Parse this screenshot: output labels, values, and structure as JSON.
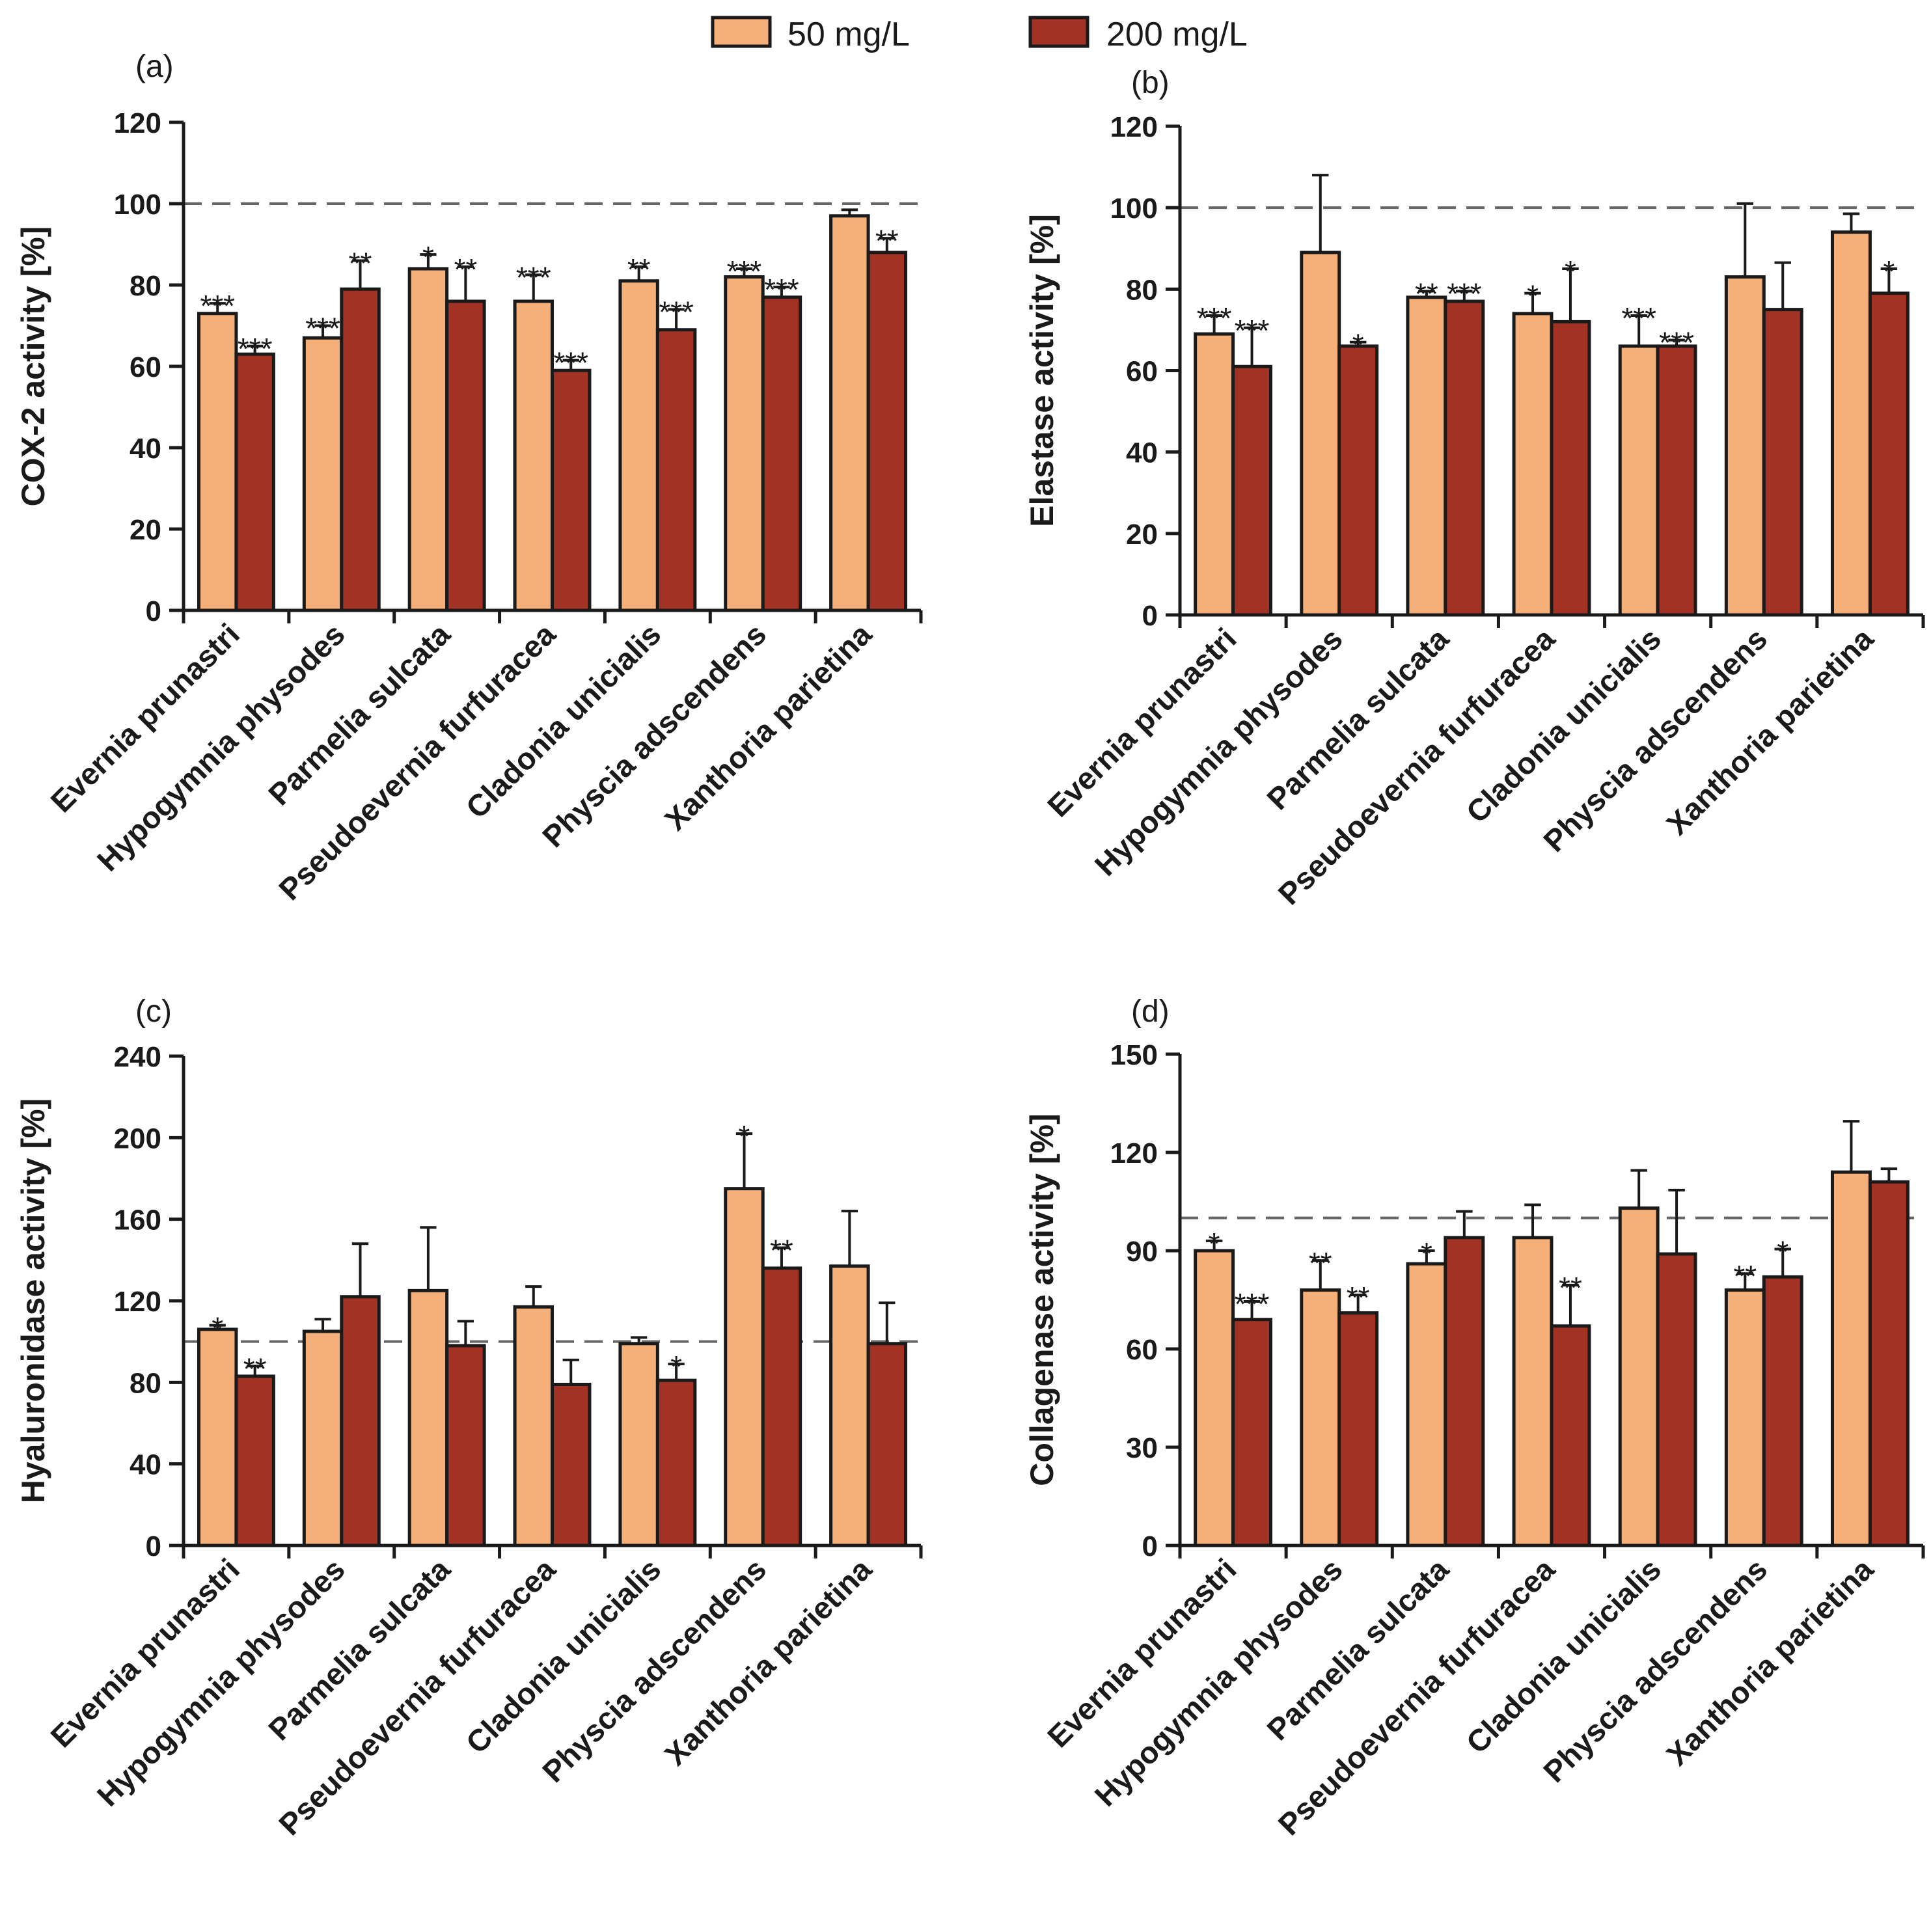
{
  "legend": [
    {
      "label": "50 mg/L",
      "color": "#f5b07a"
    },
    {
      "label": "200 mg/L",
      "color": "#a23224"
    }
  ],
  "colors": {
    "series_50": "#f5b07a",
    "series_200": "#a23224",
    "axis": "#1a1a1a",
    "reference": "#666666"
  },
  "chart_data": [
    {
      "panel": "(a)",
      "type": "bar",
      "ylabel": "COX-2 activity [%]",
      "ylim": [
        0,
        120
      ],
      "yticks": [
        0,
        20,
        40,
        60,
        80,
        100,
        120
      ],
      "reference_line": 100,
      "categories": [
        "Evernia prunastri",
        "Hypogymnia physodes",
        "Parmelia sulcata",
        "Pseudoevernia furfuracea",
        "Cladonia unicialis",
        "Physcia adscendens",
        "Xanthoria parietina"
      ],
      "series": [
        {
          "name": "50 mg/L",
          "values": [
            73,
            67,
            84,
            76,
            81,
            82,
            97
          ],
          "errors": [
            2.5,
            3,
            3.5,
            6.5,
            3.5,
            2,
            1.5
          ],
          "sig": [
            "***",
            "***",
            "*",
            "***",
            "**",
            "***",
            ""
          ]
        },
        {
          "name": "200 mg/L",
          "values": [
            63,
            79,
            76,
            59,
            69,
            77,
            88
          ],
          "errors": [
            2,
            7,
            8.5,
            2.5,
            5,
            2.5,
            3.5
          ],
          "sig": [
            "***",
            "**",
            "**",
            "***",
            "***",
            "***",
            "**"
          ]
        }
      ]
    },
    {
      "panel": "(b)",
      "type": "bar",
      "ylabel": "Elastase activity [%]",
      "ylim": [
        0,
        120
      ],
      "yticks": [
        0,
        20,
        40,
        60,
        80,
        100,
        120
      ],
      "reference_line": 100,
      "categories": [
        "Evernia prunastri",
        "Hypogymnia physodes",
        "Parmelia sulcata",
        "Pseudoevernia furfuracea",
        "Cladonia unicialis",
        "Physcia adscendens",
        "Xanthoria parietina"
      ],
      "series": [
        {
          "name": "50 mg/L",
          "values": [
            69,
            89,
            78,
            74,
            66,
            83,
            94
          ],
          "errors": [
            4.5,
            19,
            1.5,
            5,
            7.5,
            18,
            4.5
          ],
          "sig": [
            "***",
            "",
            "**",
            "*",
            "***",
            "",
            ""
          ]
        },
        {
          "name": "200 mg/L",
          "values": [
            61,
            66,
            77,
            72,
            66,
            75,
            79
          ],
          "errors": [
            9.5,
            1,
            2.5,
            13,
            1.5,
            11.5,
            6
          ],
          "sig": [
            "***",
            "*",
            "***",
            "*",
            "***",
            "",
            "*"
          ]
        }
      ]
    },
    {
      "panel": "(c)",
      "type": "bar",
      "ylabel": "Hyaluronidase activity [%]",
      "ylim": [
        0,
        240
      ],
      "yticks": [
        0,
        40,
        80,
        120,
        160,
        200,
        240
      ],
      "reference_line": 100,
      "categories": [
        "Evernia prunastri",
        "Hypogymnia physodes",
        "Parmelia sulcata",
        "Pseudoevernia furfuracea",
        "Cladonia unicialis",
        "Physcia adscendens",
        "Xanthoria parietina"
      ],
      "series": [
        {
          "name": "50 mg/L",
          "values": [
            106,
            105,
            125,
            117,
            99,
            175,
            137
          ],
          "errors": [
            2,
            6,
            31,
            10,
            3,
            27,
            27
          ],
          "sig": [
            "*",
            "",
            "",
            "",
            "",
            "*",
            ""
          ]
        },
        {
          "name": "200 mg/L",
          "values": [
            83,
            122,
            98,
            79,
            81,
            136,
            99
          ],
          "errors": [
            5,
            26,
            12,
            12,
            8,
            10,
            20
          ],
          "sig": [
            "**",
            "",
            "",
            "",
            "*",
            "**",
            ""
          ]
        }
      ]
    },
    {
      "panel": "(d)",
      "type": "bar",
      "ylabel": "Collagenase activity [%]",
      "ylim": [
        0,
        150
      ],
      "yticks": [
        0,
        30,
        60,
        90,
        120,
        150
      ],
      "reference_line": 100,
      "categories": [
        "Evernia prunastri",
        "Hypogymnia physodes",
        "Parmelia sulcata",
        "Pseudoevernia furfuracea",
        "Cladonia unicialis",
        "Physcia adscendens",
        "Xanthoria parietina"
      ],
      "series": [
        {
          "name": "50 mg/L",
          "values": [
            90,
            78,
            86,
            94,
            103,
            78,
            114
          ],
          "errors": [
            3,
            9,
            4,
            10,
            11.5,
            5,
            15.5
          ],
          "sig": [
            "*",
            "**",
            "*",
            "",
            "",
            "**",
            ""
          ]
        },
        {
          "name": "200 mg/L",
          "values": [
            69,
            71,
            94,
            67,
            89,
            82,
            111
          ],
          "errors": [
            5.5,
            5.5,
            8,
            12.5,
            19.5,
            8.5,
            4
          ],
          "sig": [
            "***",
            "**",
            "",
            "**",
            "",
            "*",
            ""
          ]
        }
      ]
    }
  ]
}
